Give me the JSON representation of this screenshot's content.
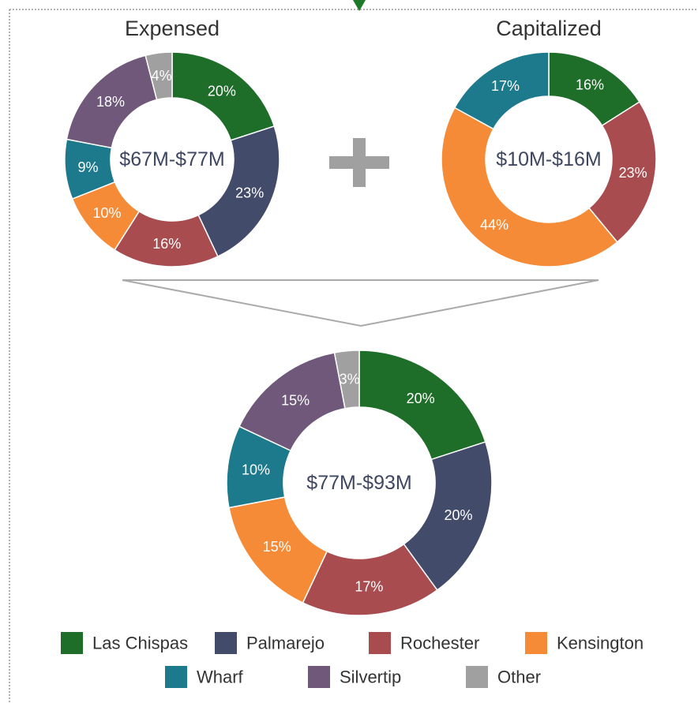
{
  "chart_data": [
    {
      "type": "donut",
      "title": "Expensed",
      "center_label": "$67M-$77M",
      "values": [
        20,
        23,
        16,
        10,
        9,
        18,
        4
      ],
      "value_labels": [
        "20%",
        "23%",
        "16%",
        "10%",
        "9%",
        "18%",
        "4%"
      ],
      "colors": [
        "#1e6e2a",
        "#434b6b",
        "#a84c50",
        "#f68b37",
        "#1d7a8c",
        "#6f587a",
        "#a0a0a0"
      ]
    },
    {
      "type": "donut",
      "title": "Capitalized",
      "center_label": "$10M-$16M",
      "values": [
        16,
        23,
        44,
        17
      ],
      "value_labels": [
        "16%",
        "23%",
        "44%",
        "17%"
      ],
      "colors": [
        "#1e6e2a",
        "#a84c50",
        "#f68b37",
        "#1d7a8c"
      ]
    },
    {
      "type": "donut",
      "center_label": "$77M-$93M",
      "categories": [
        "Las Chispas",
        "Palmarejo",
        "Rochester",
        "Kensington",
        "Wharf",
        "Silvertip",
        "Other"
      ],
      "values": [
        20,
        20,
        17,
        15,
        10,
        15,
        3
      ],
      "value_labels": [
        "20%",
        "20%",
        "17%",
        "15%",
        "10%",
        "15%",
        "3%"
      ],
      "colors": [
        "#1e6e2a",
        "#434b6b",
        "#a84c50",
        "#f68b37",
        "#1d7a8c",
        "#6f587a",
        "#a0a0a0"
      ]
    }
  ]
}
